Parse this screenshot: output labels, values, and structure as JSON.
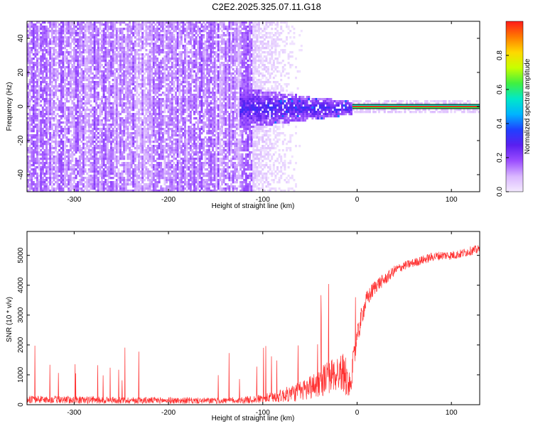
{
  "page": {
    "title": "C2E2.2025.325.07.11.G18"
  },
  "chart_data": [
    {
      "type": "heatmap",
      "xlabel": "Height of straight line (km)",
      "ylabel": "Frequency (Hz)",
      "xlim": [
        -350,
        130
      ],
      "ylim": [
        -50,
        50
      ],
      "x_ticks": [
        -300,
        -200,
        -100,
        0,
        100
      ],
      "y_ticks": [
        -40,
        -20,
        0,
        20,
        40
      ],
      "colorbar": {
        "label": "Normalized spectral amplitude",
        "range": [
          0,
          1
        ],
        "ticks": [
          "0.0",
          "0.2",
          "0.4",
          "0.6",
          "0.8"
        ],
        "colors": [
          "#f4eaff",
          "#d9b6ff",
          "#9b4dff",
          "#5a1ff0",
          "#2040ff",
          "#00b4ff",
          "#00e8c8",
          "#40f040",
          "#c8ff00",
          "#ffd800",
          "#ff7a00",
          "#ff1a1a"
        ]
      },
      "features": {
        "noise_region_x": [
          -350,
          -110
        ],
        "noise_fade_x": [
          -110,
          -50
        ],
        "cluster_region_x": [
          -125,
          -5
        ],
        "cluster_region_y": [
          -10,
          8
        ],
        "tone_start_x": -5,
        "tone_end_x": 130,
        "tone_frequency_hz": 0
      }
    },
    {
      "type": "line",
      "xlabel": "Height of straight line (km)",
      "ylabel": "SNR (10 * v/v)",
      "xlim": [
        -350,
        130
      ],
      "ylim": [
        0,
        5800
      ],
      "x_ticks": [
        -300,
        -200,
        -100,
        0,
        100
      ],
      "y_ticks": [
        0,
        1000,
        2000,
        3000,
        4000,
        5000
      ],
      "line_color": "#ff3030",
      "envelope": {
        "x": [
          -350,
          -300,
          -250,
          -200,
          -150,
          -120,
          -100,
          -80,
          -60,
          -45,
          -35,
          -25,
          -15,
          -8,
          -5,
          0,
          5,
          10,
          20,
          30,
          40,
          50,
          60,
          70,
          80,
          90,
          100,
          110,
          120,
          130
        ],
        "base": [
          180,
          160,
          150,
          140,
          130,
          150,
          200,
          300,
          450,
          650,
          850,
          1000,
          1100,
          600,
          1200,
          2200,
          3000,
          3500,
          4000,
          4200,
          4500,
          4650,
          4750,
          4850,
          4950,
          5000,
          5000,
          5050,
          5150,
          5200
        ],
        "spread": [
          250,
          250,
          230,
          220,
          200,
          230,
          300,
          450,
          700,
          900,
          1100,
          1200,
          1300,
          900,
          900,
          800,
          700,
          600,
          500,
          400,
          350,
          300,
          300,
          300,
          300,
          300,
          300,
          300,
          300,
          300
        ]
      }
    }
  ]
}
